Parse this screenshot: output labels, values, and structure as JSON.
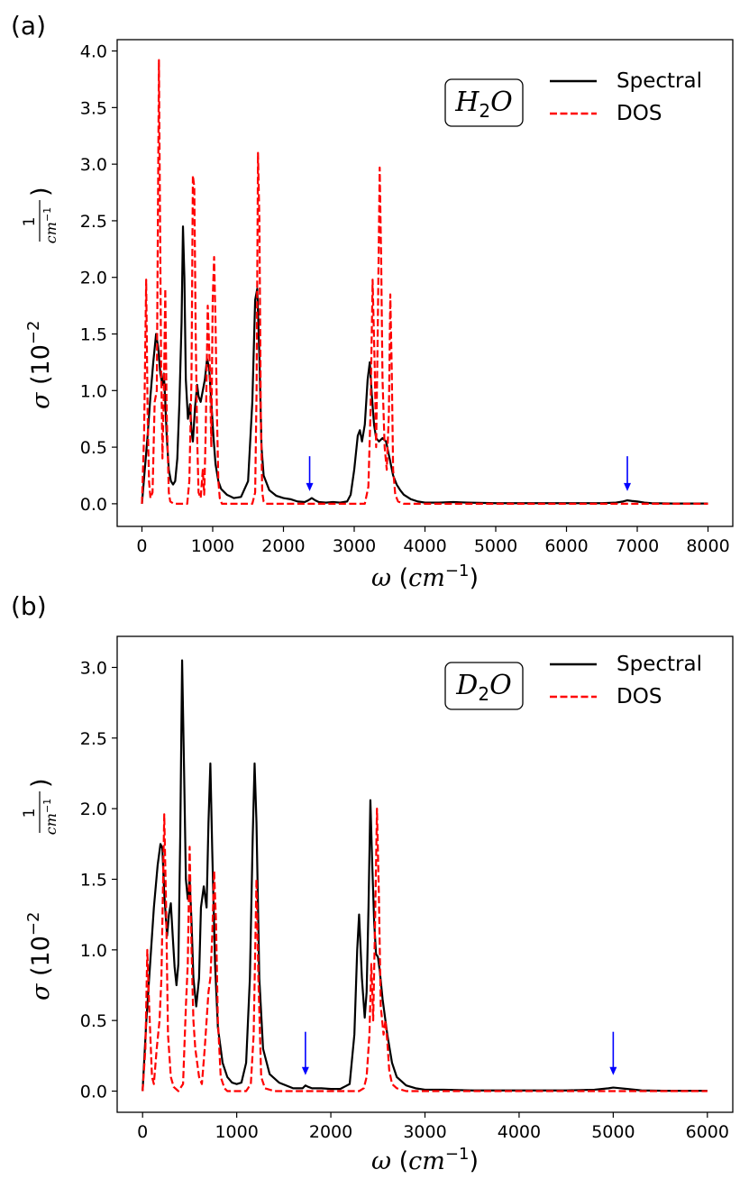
{
  "chart_data": [
    {
      "panel_label": "(a)",
      "type": "line",
      "molecule_label": {
        "base": "H",
        "sub": "2",
        "rest": "O"
      },
      "xlabel": {
        "symbol": "ω",
        "unit_base": "cm",
        "unit_exp": "−1"
      },
      "ylabel": {
        "symbol": "σ",
        "pre": "10",
        "exp": "−2",
        "frac_num": "1",
        "frac_den_base": "cm",
        "frac_den_exp": "−1"
      },
      "xlim": [
        -350,
        8350
      ],
      "ylim": [
        -0.2,
        4.1
      ],
      "xticks": [
        0,
        1000,
        2000,
        3000,
        4000,
        5000,
        6000,
        7000,
        8000
      ],
      "xtick_labels": [
        "0",
        "1000",
        "2000",
        "3000",
        "4000",
        "5000",
        "6000",
        "7000",
        "8000"
      ],
      "yticks": [
        0.0,
        0.5,
        1.0,
        1.5,
        2.0,
        2.5,
        3.0,
        3.5,
        4.0
      ],
      "ytick_labels": [
        "0.0",
        "0.5",
        "1.0",
        "1.5",
        "2.0",
        "2.5",
        "3.0",
        "3.5",
        "4.0"
      ],
      "grid": false,
      "legend_position": "top-right",
      "series": [
        {
          "name": "Spectral",
          "style": "solid",
          "color": "#000000",
          "x": [
            0,
            40,
            80,
            120,
            160,
            200,
            230,
            260,
            290,
            310,
            330,
            350,
            380,
            410,
            440,
            470,
            500,
            530,
            560,
            580,
            600,
            620,
            650,
            680,
            700,
            720,
            750,
            780,
            800,
            830,
            860,
            890,
            920,
            950,
            980,
            1010,
            1040,
            1080,
            1120,
            1200,
            1300,
            1400,
            1500,
            1560,
            1600,
            1630,
            1660,
            1690,
            1720,
            1800,
            1900,
            2000,
            2100,
            2200,
            2300,
            2350,
            2400,
            2450,
            2500,
            2600,
            2700,
            2800,
            2900,
            2950,
            3000,
            3050,
            3080,
            3110,
            3150,
            3190,
            3220,
            3250,
            3280,
            3310,
            3350,
            3400,
            3450,
            3500,
            3550,
            3600,
            3650,
            3700,
            3800,
            3900,
            4000,
            4200,
            4400,
            4600,
            5000,
            5500,
            6000,
            6500,
            6700,
            6800,
            6860,
            6920,
            7000,
            7100,
            7200,
            7500,
            8000
          ],
          "y": [
            0.0,
            0.3,
            0.6,
            0.95,
            1.25,
            1.5,
            1.38,
            1.15,
            1.05,
            1.15,
            0.9,
            0.6,
            0.3,
            0.2,
            0.17,
            0.2,
            0.4,
            0.9,
            1.6,
            2.45,
            2.0,
            1.1,
            0.75,
            0.88,
            0.65,
            0.55,
            0.85,
            1.05,
            0.95,
            0.9,
            1.0,
            1.1,
            1.28,
            1.2,
            0.9,
            0.6,
            0.35,
            0.2,
            0.13,
            0.08,
            0.05,
            0.06,
            0.2,
            0.9,
            1.8,
            1.9,
            1.3,
            0.5,
            0.25,
            0.12,
            0.07,
            0.05,
            0.04,
            0.02,
            0.015,
            0.03,
            0.05,
            0.03,
            0.015,
            0.01,
            0.015,
            0.01,
            0.02,
            0.08,
            0.3,
            0.6,
            0.65,
            0.55,
            0.7,
            1.1,
            1.25,
            0.95,
            0.7,
            0.58,
            0.55,
            0.58,
            0.55,
            0.4,
            0.25,
            0.17,
            0.12,
            0.08,
            0.04,
            0.02,
            0.01,
            0.01,
            0.015,
            0.01,
            0.005,
            0.005,
            0.005,
            0.005,
            0.01,
            0.02,
            0.03,
            0.025,
            0.02,
            0.01,
            0.005,
            0.002,
            0.002
          ]
        },
        {
          "name": "DOS",
          "style": "dashed",
          "color": "#ff0000",
          "x": [
            0,
            30,
            60,
            80,
            100,
            120,
            150,
            180,
            210,
            240,
            270,
            290,
            310,
            330,
            350,
            380,
            400,
            450,
            500,
            550,
            600,
            640,
            670,
            700,
            720,
            740,
            760,
            780,
            800,
            830,
            860,
            880,
            900,
            930,
            960,
            980,
            1000,
            1020,
            1040,
            1060,
            1080,
            1100,
            1130,
            1160,
            1200,
            1300,
            1400,
            1500,
            1560,
            1600,
            1620,
            1640,
            1660,
            1680,
            1700,
            1720,
            1750,
            1800,
            2000,
            2500,
            3000,
            3150,
            3200,
            3230,
            3260,
            3290,
            3310,
            3330,
            3360,
            3380,
            3400,
            3430,
            3460,
            3490,
            3510,
            3530,
            3550,
            3580,
            3620,
            3700,
            4000,
            5000,
            6000,
            7000,
            8000
          ],
          "y": [
            0.0,
            0.6,
            1.98,
            0.8,
            0.2,
            0.05,
            0.1,
            0.9,
            1.0,
            3.92,
            1.3,
            0.4,
            1.0,
            1.9,
            0.8,
            0.1,
            0.02,
            0.0,
            0.0,
            0.0,
            0.0,
            0.0,
            0.2,
            1.1,
            2.9,
            2.8,
            1.5,
            0.6,
            0.1,
            0.05,
            0.3,
            0.08,
            0.6,
            1.75,
            1.2,
            0.5,
            1.8,
            2.18,
            1.6,
            0.8,
            0.2,
            0.05,
            0.0,
            0.0,
            0.0,
            0.0,
            0.0,
            0.0,
            0.0,
            0.1,
            1.0,
            3.1,
            2.5,
            0.8,
            0.1,
            0.02,
            0.0,
            0.0,
            0.0,
            0.0,
            0.0,
            0.0,
            0.15,
            0.8,
            1.98,
            1.2,
            0.5,
            1.4,
            2.97,
            2.2,
            1.1,
            0.5,
            0.3,
            0.8,
            1.85,
            1.2,
            0.3,
            0.08,
            0.02,
            0.0,
            0.0,
            0.0,
            0.0,
            0.0,
            0.0
          ]
        }
      ],
      "arrow_x": [
        2370,
        6860
      ],
      "arrow_color": "#0000ff"
    },
    {
      "panel_label": "(b)",
      "type": "line",
      "molecule_label": {
        "base": "D",
        "sub": "2",
        "rest": "O"
      },
      "xlabel": {
        "symbol": "ω",
        "unit_base": "cm",
        "unit_exp": "−1"
      },
      "ylabel": {
        "symbol": "σ",
        "pre": "10",
        "exp": "−2",
        "frac_num": "1",
        "frac_den_base": "cm",
        "frac_den_exp": "−1"
      },
      "xlim": [
        -270,
        6270
      ],
      "ylim": [
        -0.15,
        3.22
      ],
      "xticks": [
        0,
        1000,
        2000,
        3000,
        4000,
        5000,
        6000
      ],
      "xtick_labels": [
        "0",
        "1000",
        "2000",
        "3000",
        "4000",
        "5000",
        "6000"
      ],
      "yticks": [
        0.0,
        0.5,
        1.0,
        1.5,
        2.0,
        2.5,
        3.0
      ],
      "ytick_labels": [
        "0.0",
        "0.5",
        "1.0",
        "1.5",
        "2.0",
        "2.5",
        "3.0"
      ],
      "grid": false,
      "legend_position": "top-right",
      "series": [
        {
          "name": "Spectral",
          "style": "solid",
          "color": "#000000",
          "x": [
            0,
            40,
            80,
            120,
            160,
            190,
            210,
            230,
            260,
            280,
            300,
            320,
            340,
            360,
            380,
            400,
            420,
            440,
            460,
            480,
            500,
            520,
            540,
            570,
            600,
            620,
            650,
            680,
            700,
            720,
            740,
            770,
            800,
            850,
            900,
            950,
            1000,
            1050,
            1100,
            1140,
            1170,
            1190,
            1210,
            1240,
            1280,
            1350,
            1450,
            1600,
            1700,
            1730,
            1760,
            1800,
            1900,
            2000,
            2100,
            2200,
            2250,
            2280,
            2300,
            2330,
            2360,
            2380,
            2400,
            2420,
            2440,
            2460,
            2480,
            2500,
            2520,
            2550,
            2600,
            2650,
            2700,
            2800,
            2900,
            3000,
            3200,
            3500,
            4000,
            4500,
            4800,
            4950,
            5000,
            5050,
            5150,
            5300,
            5600,
            6000
          ],
          "y": [
            0.0,
            0.5,
            0.9,
            1.3,
            1.6,
            1.75,
            1.72,
            1.4,
            1.1,
            1.25,
            1.33,
            1.1,
            0.88,
            0.75,
            0.9,
            1.8,
            3.05,
            2.3,
            1.5,
            1.36,
            1.5,
            1.2,
            0.8,
            0.6,
            0.8,
            1.3,
            1.45,
            1.3,
            1.9,
            2.32,
            1.7,
            0.9,
            0.45,
            0.2,
            0.1,
            0.06,
            0.05,
            0.06,
            0.2,
            0.8,
            1.8,
            2.32,
            1.9,
            0.8,
            0.3,
            0.12,
            0.06,
            0.02,
            0.02,
            0.04,
            0.03,
            0.02,
            0.02,
            0.015,
            0.015,
            0.05,
            0.4,
            1.0,
            1.25,
            0.8,
            0.52,
            0.7,
            1.3,
            2.06,
            1.6,
            1.2,
            0.97,
            0.95,
            0.85,
            0.65,
            0.4,
            0.2,
            0.1,
            0.04,
            0.02,
            0.01,
            0.01,
            0.005,
            0.005,
            0.005,
            0.01,
            0.02,
            0.025,
            0.022,
            0.015,
            0.005,
            0.002,
            0.002
          ]
        },
        {
          "name": "DOS",
          "style": "dashed",
          "color": "#ff0000",
          "x": [
            0,
            30,
            50,
            70,
            100,
            120,
            150,
            180,
            200,
            230,
            250,
            270,
            300,
            330,
            380,
            430,
            460,
            480,
            500,
            520,
            540,
            560,
            600,
            630,
            660,
            700,
            720,
            740,
            760,
            780,
            800,
            830,
            870,
            900,
            1000,
            1100,
            1150,
            1180,
            1210,
            1230,
            1260,
            1300,
            1400,
            2000,
            2300,
            2350,
            2380,
            2410,
            2430,
            2450,
            2470,
            2490,
            2510,
            2530,
            2560,
            2580,
            2600,
            2620,
            2650,
            2700,
            2800,
            3000,
            4000,
            5000,
            6000
          ],
          "y": [
            0.0,
            0.3,
            1.0,
            0.6,
            0.1,
            0.05,
            0.3,
            0.5,
            0.8,
            1.96,
            1.3,
            0.4,
            0.1,
            0.03,
            0.0,
            0.05,
            0.6,
            0.9,
            1.73,
            1.0,
            0.5,
            0.3,
            0.1,
            0.05,
            0.3,
            0.7,
            0.8,
            1.1,
            1.56,
            1.2,
            0.5,
            0.1,
            0.02,
            0.0,
            0.0,
            0.0,
            0.05,
            0.4,
            1.5,
            0.8,
            0.1,
            0.02,
            0.0,
            0.0,
            0.0,
            0.02,
            0.1,
            0.4,
            0.9,
            0.5,
            1.2,
            2.0,
            1.4,
            0.6,
            0.4,
            0.5,
            0.35,
            0.15,
            0.05,
            0.02,
            0.0,
            0.0,
            0.0,
            0.0,
            0.0
          ]
        }
      ],
      "arrow_x": [
        1730,
        5000
      ],
      "arrow_color": "#0000ff"
    }
  ]
}
